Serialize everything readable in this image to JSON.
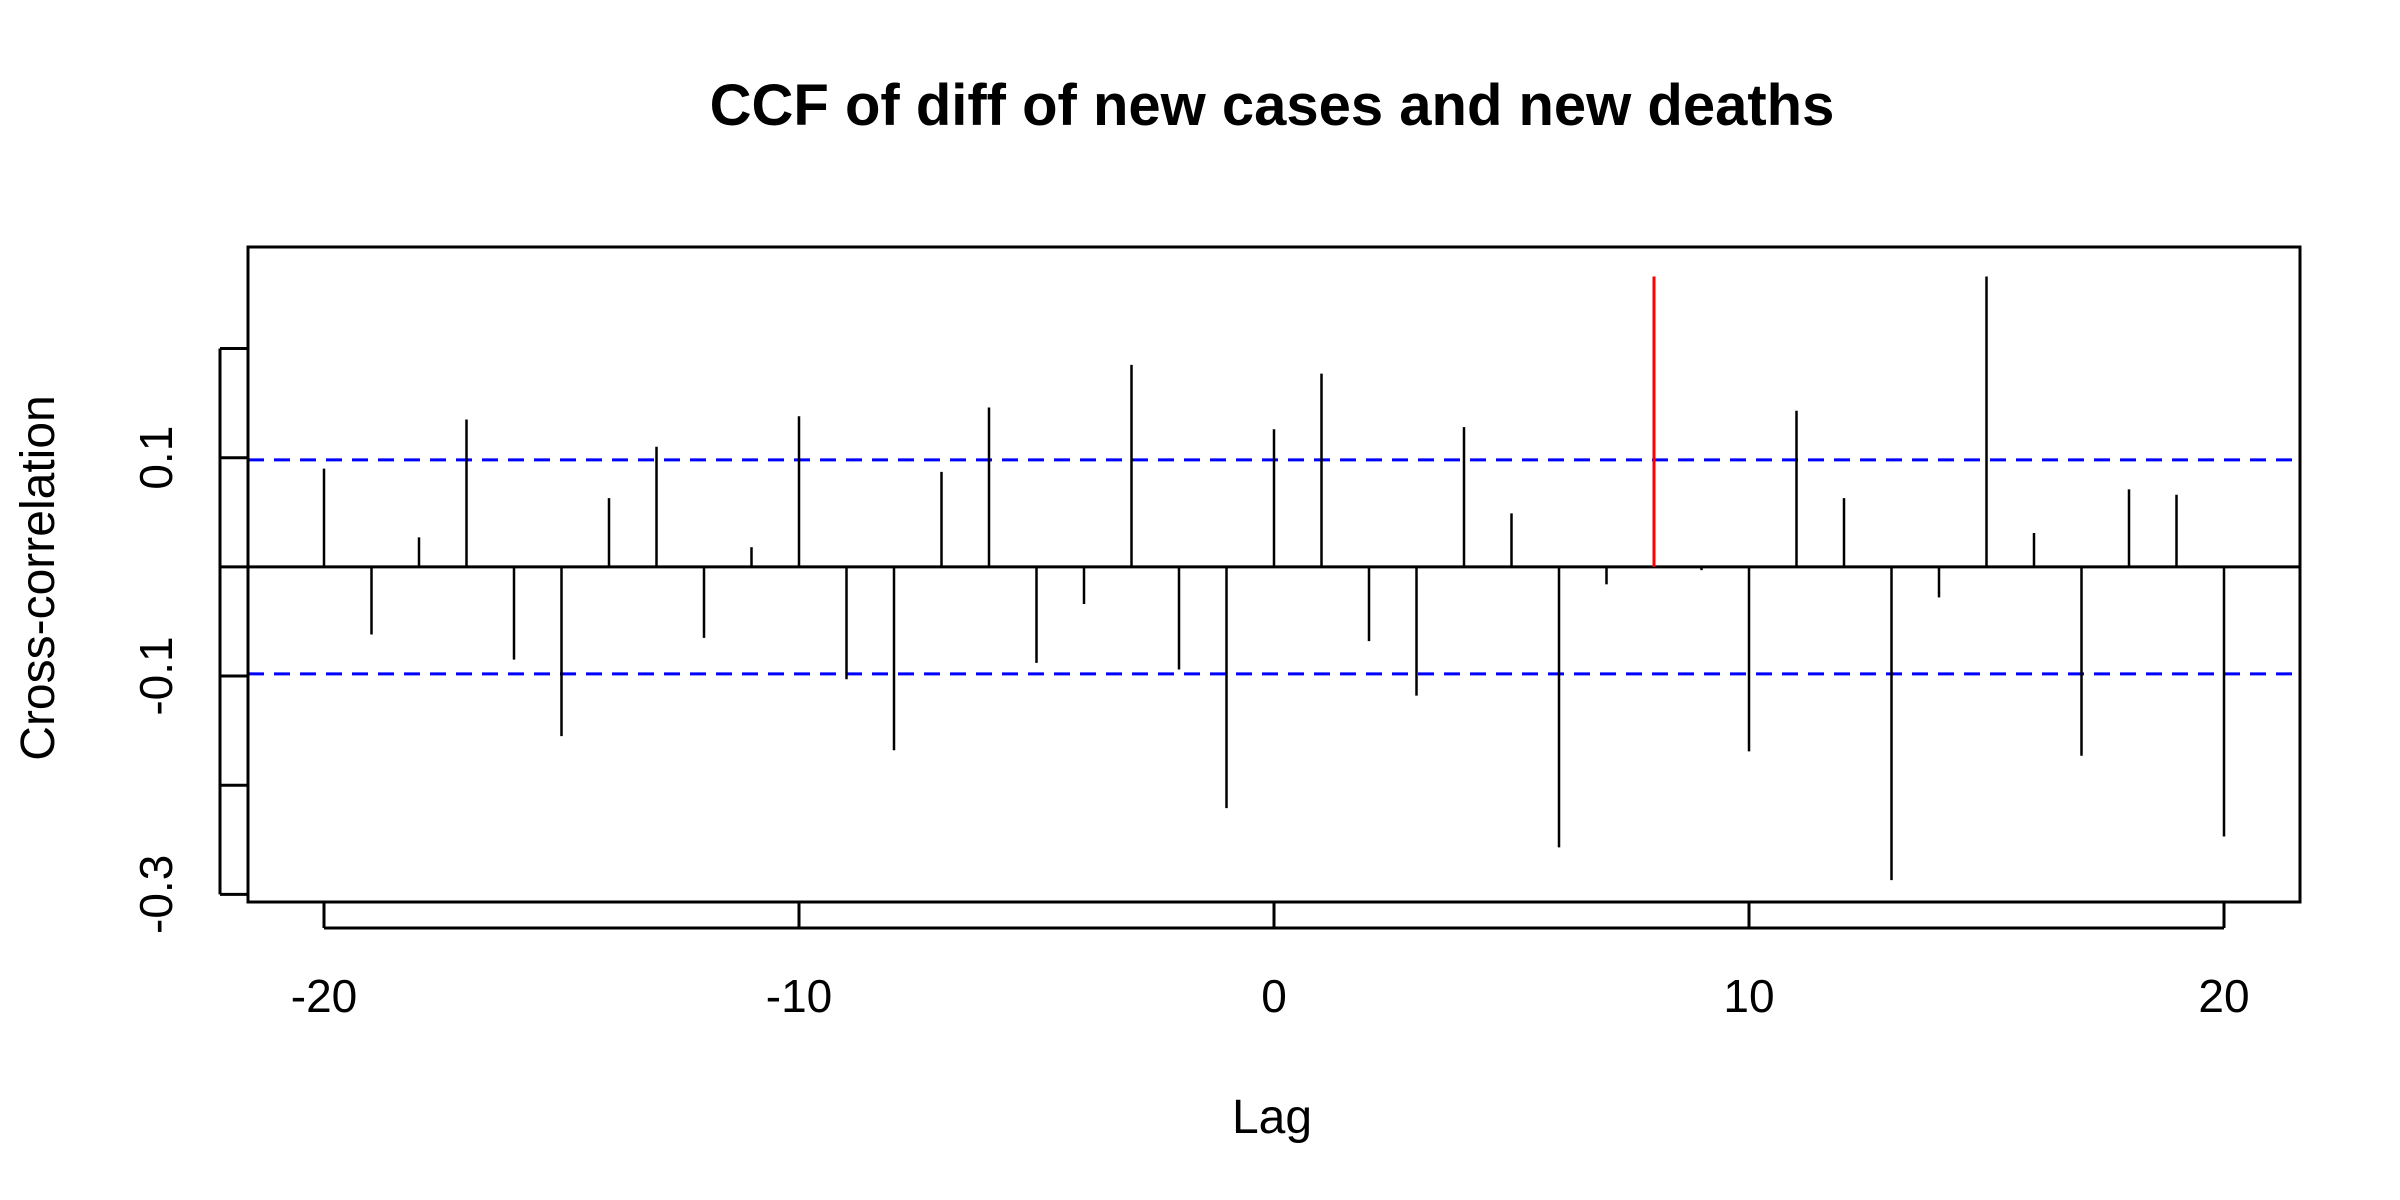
{
  "chart_data": {
    "type": "bar",
    "title": "CCF of diff of new cases and new deaths",
    "xlabel": "Lag",
    "ylabel": "Cross-correlation",
    "xlim": [
      -21.6,
      21.6
    ],
    "ylim": [
      -0.307,
      0.293
    ],
    "x_ticks": [
      {
        "value": -20,
        "label": "-20"
      },
      {
        "value": -10,
        "label": "-10"
      },
      {
        "value": 0,
        "label": "0"
      },
      {
        "value": 10,
        "label": "10"
      },
      {
        "value": 20,
        "label": "20"
      }
    ],
    "y_ticks": [
      {
        "value": -0.3,
        "label": "-0.3"
      },
      {
        "value": -0.2,
        "label": ""
      },
      {
        "value": -0.1,
        "label": "-0.1"
      },
      {
        "value": 0.0,
        "label": ""
      },
      {
        "value": 0.1,
        "label": "0.1"
      },
      {
        "value": 0.2,
        "label": ""
      }
    ],
    "confidence_bounds": [
      0.098,
      -0.098
    ],
    "bound_color": "#0000ff",
    "line_color": "#000000",
    "highlight_color": "#ff0000",
    "highlight_lag": 8,
    "lags": [
      -20,
      -19,
      -18,
      -17,
      -16,
      -15,
      -14,
      -13,
      -12,
      -11,
      -10,
      -9,
      -8,
      -7,
      -6,
      -5,
      -4,
      -3,
      -2,
      -1,
      0,
      1,
      2,
      3,
      4,
      5,
      6,
      7,
      8,
      9,
      10,
      11,
      12,
      13,
      14,
      15,
      16,
      17,
      18,
      19,
      20
    ],
    "values": [
      0.09,
      -0.062,
      0.027,
      0.135,
      -0.085,
      -0.155,
      0.063,
      0.11,
      -0.065,
      0.018,
      0.138,
      -0.103,
      -0.168,
      0.087,
      0.146,
      -0.088,
      -0.034,
      0.185,
      -0.094,
      -0.221,
      0.126,
      0.177,
      -0.068,
      -0.118,
      0.128,
      0.049,
      -0.257,
      -0.016,
      0.266,
      -0.003,
      -0.169,
      0.143,
      0.063,
      -0.287,
      -0.028,
      0.266,
      0.031,
      -0.173,
      0.071,
      0.066,
      -0.247
    ]
  }
}
